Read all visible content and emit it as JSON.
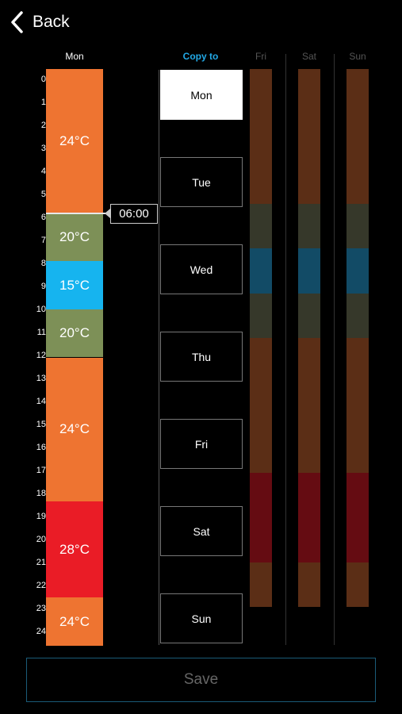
{
  "header": {
    "back_label": "Back"
  },
  "schedule": {
    "day_label": "Mon",
    "hours": [
      "0",
      "1",
      "2",
      "3",
      "4",
      "5",
      "6",
      "7",
      "8",
      "9",
      "10",
      "11",
      "12",
      "13",
      "14",
      "15",
      "16",
      "17",
      "18",
      "19",
      "20",
      "21",
      "22",
      "23",
      "24"
    ],
    "segments": [
      {
        "start": 0,
        "end": 6,
        "label": "24°C",
        "color": "#ee7431"
      },
      {
        "start": 6,
        "end": 8,
        "label": "20°C",
        "color": "#7d9057"
      },
      {
        "start": 8,
        "end": 10,
        "label": "15°C",
        "color": "#16b4ef"
      },
      {
        "start": 10,
        "end": 12,
        "label": "20°C",
        "color": "#7d9057"
      },
      {
        "start": 12,
        "end": 18,
        "label": "24°C",
        "color": "#ee7431"
      },
      {
        "start": 18,
        "end": 22,
        "label": "28°C",
        "color": "#ea1c26"
      },
      {
        "start": 22,
        "end": 24,
        "label": "24°C",
        "color": "#ee7431"
      }
    ],
    "marker_hour": 6,
    "marker_time": "06:00"
  },
  "copy_to": {
    "title": "Copy to",
    "title_color": "#22a9e6",
    "days": [
      "Mon",
      "Tue",
      "Wed",
      "Thu",
      "Fri",
      "Sat",
      "Sun"
    ],
    "selected": 0
  },
  "preview_columns": {
    "labels": [
      "Fri",
      "Sat",
      "Sun"
    ],
    "segments": [
      {
        "start": 0,
        "end": 6,
        "color": "#5b2e16"
      },
      {
        "start": 6,
        "end": 8,
        "color": "#36382a"
      },
      {
        "start": 8,
        "end": 10,
        "color": "#124b66"
      },
      {
        "start": 10,
        "end": 12,
        "color": "#36382a"
      },
      {
        "start": 12,
        "end": 18,
        "color": "#5b2e16"
      },
      {
        "start": 18,
        "end": 22,
        "color": "#650c12"
      },
      {
        "start": 22,
        "end": 24,
        "color": "#5b2e16"
      }
    ]
  },
  "footer": {
    "save_label": "Save",
    "border_color": "#1a5b78"
  }
}
